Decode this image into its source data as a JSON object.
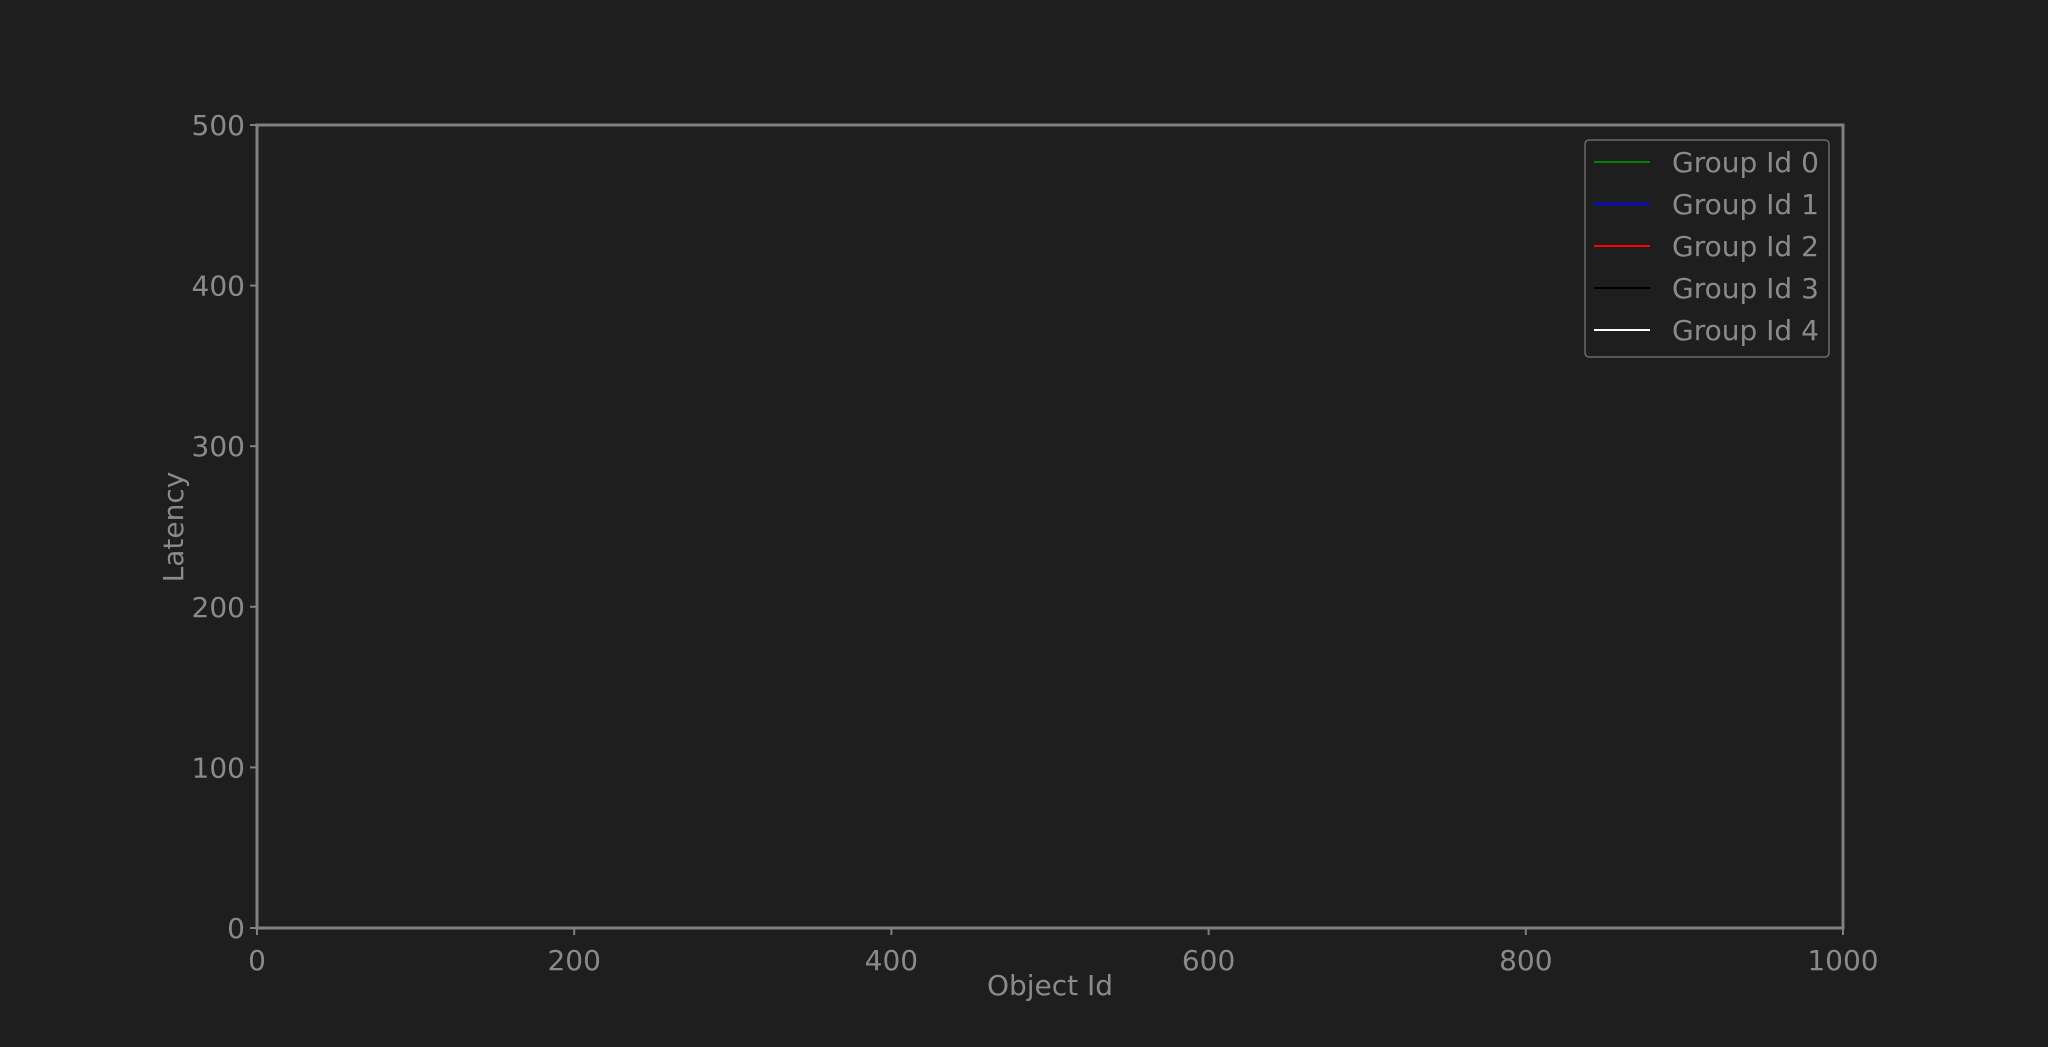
{
  "chart_data": {
    "type": "line",
    "title": "",
    "xlabel": "Object Id",
    "ylabel": "Latency",
    "xlim": [
      0,
      1000
    ],
    "ylim": [
      0,
      500
    ],
    "xticks": [
      0,
      200,
      400,
      600,
      800,
      1000
    ],
    "yticks": [
      0,
      100,
      200,
      300,
      400,
      500
    ],
    "grid": false,
    "legend_position": "top-right",
    "series": [
      {
        "name": "Group Id 0",
        "color": "#008000",
        "x": [],
        "y": []
      },
      {
        "name": "Group Id 1",
        "color": "#0000ff",
        "x": [],
        "y": []
      },
      {
        "name": "Group Id 2",
        "color": "#ff0000",
        "x": [],
        "y": []
      },
      {
        "name": "Group Id 3",
        "color": "#000000",
        "x": [],
        "y": []
      },
      {
        "name": "Group Id 4",
        "color": "#ffffff",
        "x": [],
        "y": []
      }
    ],
    "colors": {
      "background": "#1e1e1e",
      "axes": "#808080",
      "text": "#8a8a8a"
    }
  }
}
